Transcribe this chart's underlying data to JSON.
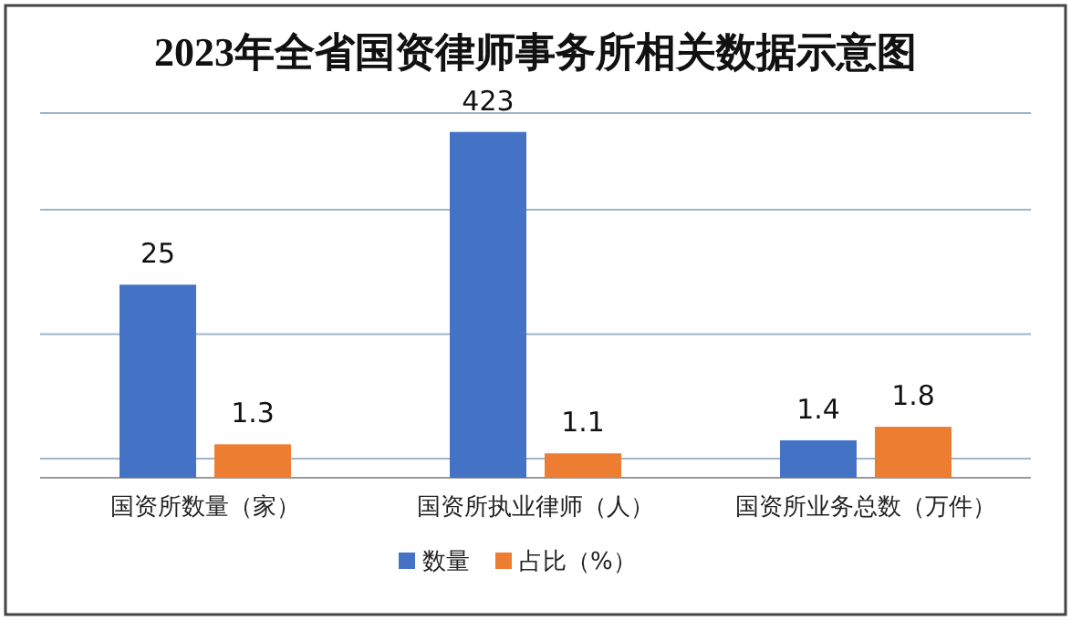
{
  "chart_data": {
    "type": "bar",
    "title": "2023年全省国资律师事务所相关数据示意图",
    "categories": [
      "国资所数量（家）",
      "国资所执业律师（人）",
      "国资所业务总数（万件）"
    ],
    "series": [
      {
        "name": "数量",
        "color": "#4472c4",
        "values": [
          25,
          423,
          1.4
        ]
      },
      {
        "name": "占比（%）",
        "color": "#ed7d31",
        "values": [
          1.3,
          1.1,
          1.8
        ]
      }
    ],
    "log": true,
    "ylim": [
      0.7,
      600
    ],
    "yticks": [
      {
        "value": 1,
        "label": null
      },
      {
        "value": 10,
        "label": null
      },
      {
        "value": 100,
        "label": null
      }
    ],
    "grid": "y",
    "legend": "bottom",
    "data_labels": true
  }
}
